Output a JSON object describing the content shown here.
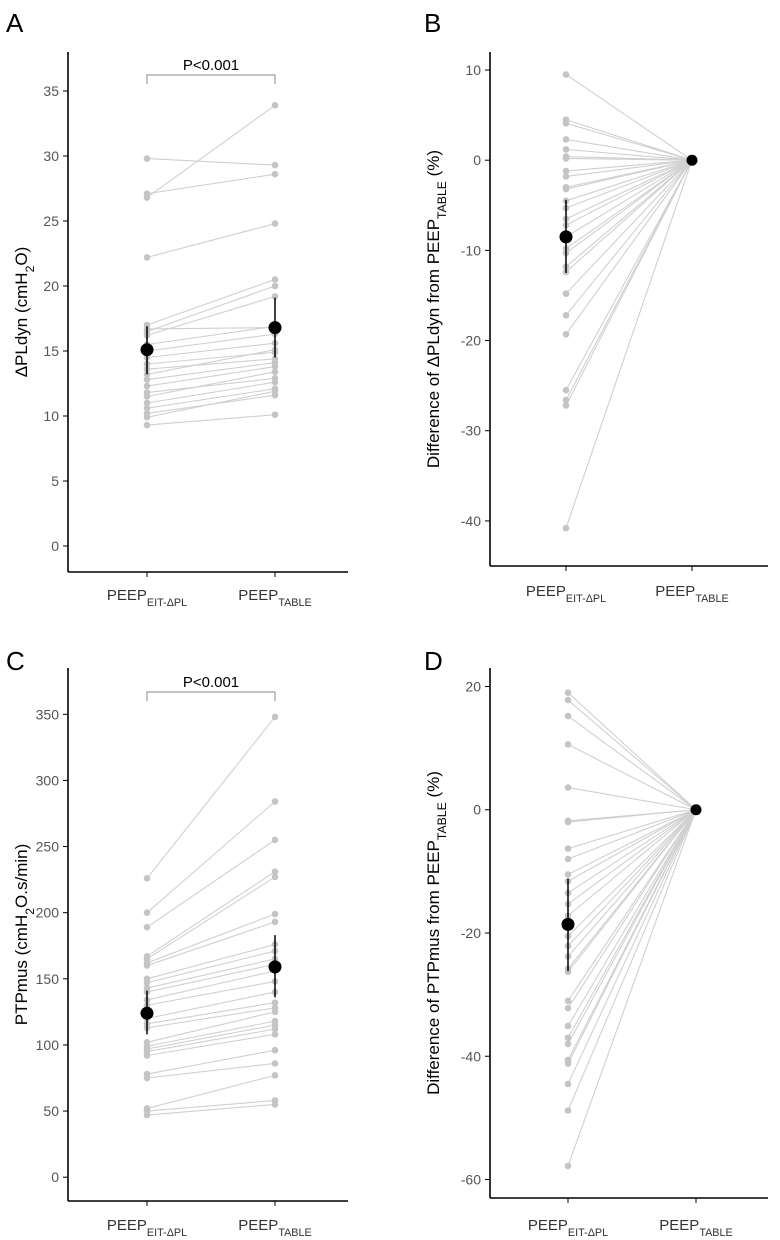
{
  "chart_data": [
    {
      "panel": "A",
      "type": "scatter",
      "xlabel": "",
      "ylabel_parts": [
        {
          "t": "ΔPLdyn (cmH"
        },
        {
          "t": "2",
          "sub": true
        },
        {
          "t": "O)"
        }
      ],
      "categories": [
        [
          {
            "t": "PEEP"
          },
          {
            "t": "EIT-ΔPL",
            "sub": true
          }
        ],
        [
          {
            "t": "PEEP"
          },
          {
            "t": "TABLE",
            "sub": true
          }
        ]
      ],
      "ylim": [
        -2,
        38
      ],
      "yticks": [
        0,
        5,
        10,
        15,
        20,
        25,
        30,
        35
      ],
      "annotation": "P<0.001",
      "pairs": [
        [
          29.8,
          29.3
        ],
        [
          27.1,
          28.6
        ],
        [
          26.8,
          33.9
        ],
        [
          22.2,
          24.8
        ],
        [
          17.0,
          20.5
        ],
        [
          16.7,
          16.8
        ],
        [
          16.5,
          20.0
        ],
        [
          16.2,
          19.2
        ],
        [
          15.5,
          16.9
        ],
        [
          15.0,
          16.3
        ],
        [
          14.5,
          15.6
        ],
        [
          14.0,
          14.9
        ],
        [
          13.6,
          14.4
        ],
        [
          13.2,
          15.1
        ],
        [
          12.8,
          14.1
        ],
        [
          12.3,
          13.8
        ],
        [
          11.8,
          12.9
        ],
        [
          11.5,
          13.4
        ],
        [
          11.0,
          12.6
        ],
        [
          10.6,
          12.1
        ],
        [
          10.2,
          11.6
        ],
        [
          9.9,
          11.9
        ],
        [
          9.3,
          10.1
        ]
      ],
      "mean": [
        15.1,
        16.8
      ],
      "err_low": [
        13.2,
        14.5
      ],
      "err_high": [
        16.9,
        19.1
      ]
    },
    {
      "panel": "B",
      "type": "scatter",
      "xlabel": "",
      "ylabel_parts": [
        {
          "t": "Difference of ΔPLdyn from PEEP"
        },
        {
          "t": "TABLE",
          "sub": true
        },
        {
          "t": " (%)"
        }
      ],
      "categories": [
        [
          {
            "t": "PEEP"
          },
          {
            "t": "EIT-ΔPL",
            "sub": true
          }
        ],
        [
          {
            "t": "PEEP"
          },
          {
            "t": "TABLE",
            "sub": true
          }
        ]
      ],
      "ylim": [
        -45,
        12
      ],
      "yticks": [
        -40,
        -30,
        -20,
        -10,
        0,
        10
      ],
      "pairs": [
        [
          9.5,
          0
        ],
        [
          4.5,
          0
        ],
        [
          4.1,
          0
        ],
        [
          2.3,
          0
        ],
        [
          1.2,
          0
        ],
        [
          0.4,
          0
        ],
        [
          0.2,
          0
        ],
        [
          -1.2,
          0
        ],
        [
          -1.8,
          0
        ],
        [
          -3.0,
          0
        ],
        [
          -3.2,
          0
        ],
        [
          -4.5,
          0
        ],
        [
          -5.3,
          0
        ],
        [
          -6.5,
          0
        ],
        [
          -7.2,
          0
        ],
        [
          -8.5,
          0
        ],
        [
          -9.8,
          0
        ],
        [
          -10.3,
          0
        ],
        [
          -11.8,
          0
        ],
        [
          -12.4,
          0
        ],
        [
          -14.8,
          0
        ],
        [
          -17.2,
          0
        ],
        [
          -19.3,
          0
        ],
        [
          -25.5,
          0
        ],
        [
          -26.6,
          0
        ],
        [
          -27.2,
          0
        ],
        [
          -40.8,
          0
        ]
      ],
      "mean": [
        -8.5,
        0
      ],
      "err_low": [
        -12.5,
        0
      ],
      "err_high": [
        -4.4,
        0
      ]
    },
    {
      "panel": "C",
      "type": "scatter",
      "xlabel": "",
      "ylabel_parts": [
        {
          "t": "PTPmus (cmH"
        },
        {
          "t": "2",
          "sub": true
        },
        {
          "t": "O.s/min)"
        }
      ],
      "categories": [
        [
          {
            "t": "PEEP"
          },
          {
            "t": "EIT-ΔPL",
            "sub": true
          }
        ],
        [
          {
            "t": "PEEP"
          },
          {
            "t": "TABLE",
            "sub": true
          }
        ]
      ],
      "ylim": [
        -18,
        385
      ],
      "yticks": [
        0,
        50,
        100,
        150,
        200,
        250,
        300,
        350
      ],
      "annotation": "P<0.001",
      "pairs": [
        [
          226,
          348
        ],
        [
          200,
          284
        ],
        [
          189,
          255
        ],
        [
          167,
          231
        ],
        [
          165,
          227
        ],
        [
          162,
          199
        ],
        [
          160,
          193
        ],
        [
          150,
          176
        ],
        [
          147,
          171
        ],
        [
          143,
          165
        ],
        [
          140,
          161
        ],
        [
          134,
          156
        ],
        [
          130,
          148
        ],
        [
          120,
          140
        ],
        [
          116,
          132
        ],
        [
          113,
          128
        ],
        [
          102,
          125
        ],
        [
          99,
          118
        ],
        [
          97,
          115
        ],
        [
          95,
          112
        ],
        [
          92,
          108
        ],
        [
          78,
          96
        ],
        [
          75,
          86
        ],
        [
          52,
          77
        ],
        [
          50,
          58
        ],
        [
          47,
          55
        ]
      ],
      "mean": [
        124,
        159
      ],
      "err_low": [
        108,
        136
      ],
      "err_high": [
        141,
        183
      ]
    },
    {
      "panel": "D",
      "type": "scatter",
      "xlabel": "",
      "ylabel_parts": [
        {
          "t": "Difference of PTPmus from PEEP"
        },
        {
          "t": "TABLE",
          "sub": true
        },
        {
          "t": " (%)"
        }
      ],
      "categories": [
        [
          {
            "t": "PEEP"
          },
          {
            "t": "EIT-ΔPL",
            "sub": true
          }
        ],
        [
          {
            "t": "PEEP"
          },
          {
            "t": "TABLE",
            "sub": true
          }
        ]
      ],
      "ylim": [
        -63,
        23
      ],
      "yticks": [
        -60,
        -40,
        -20,
        0,
        20
      ],
      "pairs": [
        [
          19.0,
          0
        ],
        [
          17.8,
          0
        ],
        [
          15.2,
          0
        ],
        [
          10.6,
          0
        ],
        [
          3.6,
          0
        ],
        [
          -1.8,
          0
        ],
        [
          -2.0,
          0
        ],
        [
          -6.3,
          0
        ],
        [
          -8.0,
          0
        ],
        [
          -10.5,
          0
        ],
        [
          -11.6,
          0
        ],
        [
          -13.5,
          0
        ],
        [
          -15.3,
          0
        ],
        [
          -17.2,
          0
        ],
        [
          -20.5,
          0
        ],
        [
          -22.1,
          0
        ],
        [
          -23.8,
          0
        ],
        [
          -25.8,
          0
        ],
        [
          -26.3,
          0
        ],
        [
          -31.0,
          0
        ],
        [
          -32.2,
          0
        ],
        [
          -35.1,
          0
        ],
        [
          -37.0,
          0
        ],
        [
          -38.0,
          0
        ],
        [
          -40.6,
          0
        ],
        [
          -41.2,
          0
        ],
        [
          -44.5,
          0
        ],
        [
          -48.8,
          0
        ],
        [
          -57.8,
          0
        ]
      ],
      "mean": [
        -18.6,
        0
      ],
      "err_low": [
        -26.2,
        0
      ],
      "err_high": [
        -11.2,
        0
      ]
    }
  ]
}
